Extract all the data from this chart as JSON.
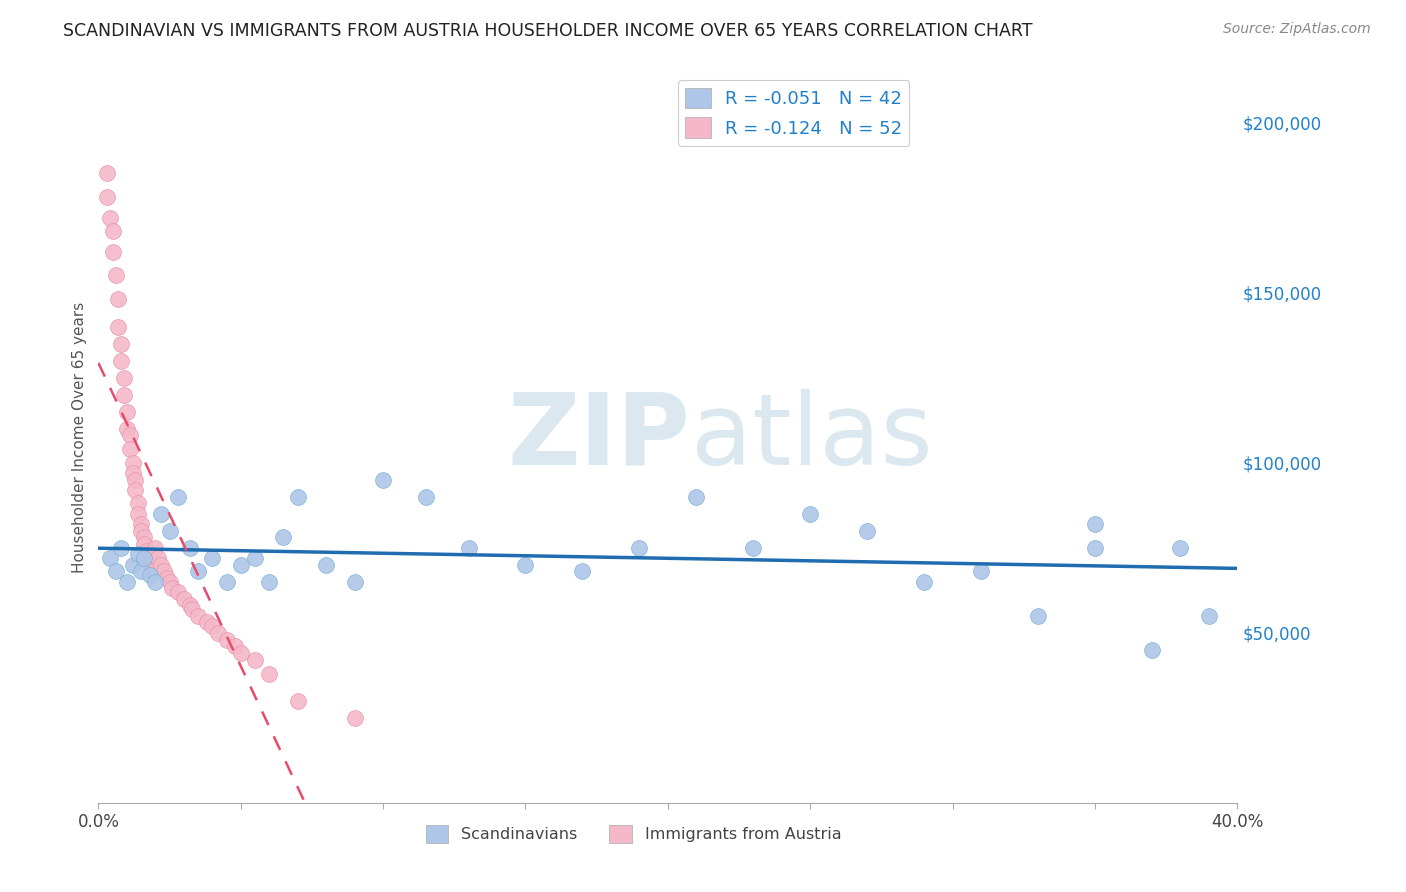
{
  "title": "SCANDINAVIAN VS IMMIGRANTS FROM AUSTRIA HOUSEHOLDER INCOME OVER 65 YEARS CORRELATION CHART",
  "source": "Source: ZipAtlas.com",
  "ylabel": "Householder Income Over 65 years",
  "ylabel_right_ticks": [
    "$200,000",
    "$150,000",
    "$100,000",
    "$50,000"
  ],
  "ylabel_right_values": [
    200000,
    150000,
    100000,
    50000
  ],
  "xmin": 0.0,
  "xmax": 0.4,
  "ymin": 0,
  "ymax": 215000,
  "watermark_zip": "ZIP",
  "watermark_atlas": "atlas",
  "legend_blue_r": "R = -0.051",
  "legend_blue_n": "N = 42",
  "legend_pink_r": "R = -0.124",
  "legend_pink_n": "N = 52",
  "blue_scatter_x": [
    0.004,
    0.006,
    0.008,
    0.01,
    0.012,
    0.014,
    0.015,
    0.016,
    0.018,
    0.02,
    0.022,
    0.025,
    0.028,
    0.032,
    0.035,
    0.04,
    0.045,
    0.05,
    0.055,
    0.06,
    0.065,
    0.07,
    0.08,
    0.09,
    0.1,
    0.115,
    0.13,
    0.15,
    0.17,
    0.19,
    0.21,
    0.23,
    0.25,
    0.27,
    0.29,
    0.31,
    0.33,
    0.35,
    0.37,
    0.39,
    0.35,
    0.38
  ],
  "blue_scatter_y": [
    72000,
    68000,
    75000,
    65000,
    70000,
    73000,
    68000,
    72000,
    67000,
    65000,
    85000,
    80000,
    90000,
    75000,
    68000,
    72000,
    65000,
    70000,
    72000,
    65000,
    78000,
    90000,
    70000,
    65000,
    95000,
    90000,
    75000,
    70000,
    68000,
    75000,
    90000,
    75000,
    85000,
    80000,
    65000,
    68000,
    55000,
    75000,
    45000,
    55000,
    82000,
    75000
  ],
  "pink_scatter_x": [
    0.003,
    0.003,
    0.004,
    0.005,
    0.005,
    0.006,
    0.007,
    0.007,
    0.008,
    0.008,
    0.009,
    0.009,
    0.01,
    0.01,
    0.011,
    0.011,
    0.012,
    0.012,
    0.013,
    0.013,
    0.014,
    0.014,
    0.015,
    0.015,
    0.016,
    0.016,
    0.017,
    0.018,
    0.018,
    0.019,
    0.02,
    0.021,
    0.022,
    0.023,
    0.024,
    0.025,
    0.026,
    0.028,
    0.03,
    0.032,
    0.033,
    0.035,
    0.038,
    0.04,
    0.042,
    0.045,
    0.048,
    0.05,
    0.055,
    0.06,
    0.07,
    0.09
  ],
  "pink_scatter_y": [
    185000,
    178000,
    172000,
    168000,
    162000,
    155000,
    148000,
    140000,
    135000,
    130000,
    125000,
    120000,
    115000,
    110000,
    108000,
    104000,
    100000,
    97000,
    95000,
    92000,
    88000,
    85000,
    82000,
    80000,
    78000,
    76000,
    74000,
    72000,
    70000,
    68000,
    75000,
    72000,
    70000,
    68000,
    66000,
    65000,
    63000,
    62000,
    60000,
    58000,
    57000,
    55000,
    53000,
    52000,
    50000,
    48000,
    46000,
    44000,
    42000,
    38000,
    30000,
    25000
  ],
  "blue_color": "#aec6e8",
  "blue_edge_color": "#7aafd4",
  "pink_color": "#f4b8c8",
  "pink_edge_color": "#e890a8",
  "blue_line_color": "#1f6cb0",
  "pink_line_color": "#e84b6a",
  "grid_color": "#cccccc",
  "background_color": "#ffffff",
  "right_axis_color": "#2080cc",
  "watermark_color": "#dce8f0"
}
